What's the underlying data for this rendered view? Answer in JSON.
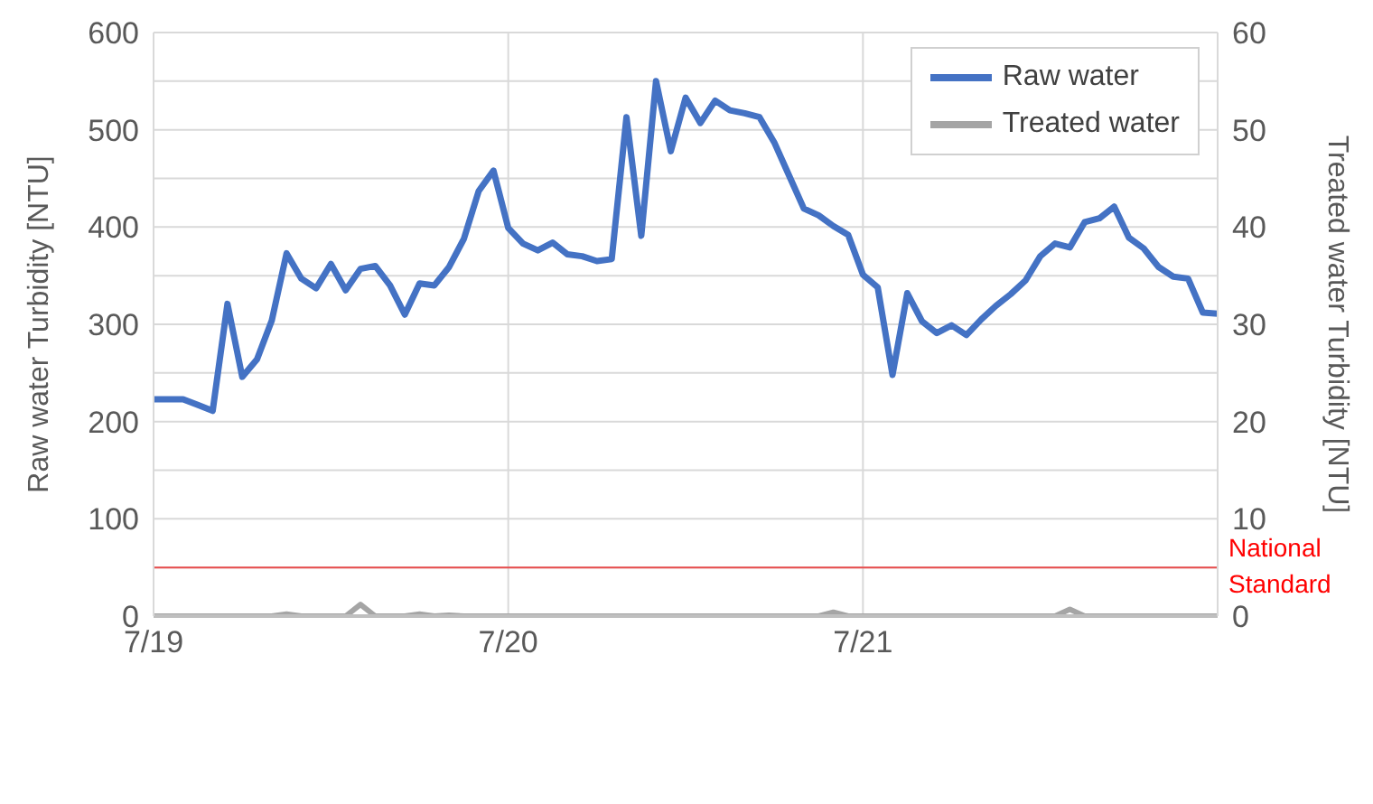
{
  "chart_data": {
    "type": "line",
    "ylabel": "Raw water Turbidity [NTU]",
    "y2label": "Treated water Turbidity [NTU]",
    "categories": [
      "7/19",
      null,
      null,
      null,
      null,
      null,
      null,
      null,
      null,
      null,
      null,
      null,
      null,
      null,
      null,
      null,
      null,
      null,
      null,
      null,
      null,
      null,
      null,
      null,
      "7/20",
      null,
      null,
      null,
      null,
      null,
      null,
      null,
      null,
      null,
      null,
      null,
      null,
      null,
      null,
      null,
      null,
      null,
      null,
      null,
      null,
      null,
      null,
      null,
      "7/21",
      null,
      null,
      null,
      null,
      null,
      null,
      null,
      null,
      null,
      null,
      null,
      null,
      null,
      null,
      null,
      null,
      null,
      null,
      null,
      null,
      null,
      null,
      null,
      null
    ],
    "series": [
      {
        "name": "Raw water",
        "color": "#4472c4",
        "values": [
          223,
          223,
          223,
          217,
          211,
          321,
          246,
          264,
          304,
          373,
          347,
          337,
          362,
          335,
          357,
          360,
          340,
          310,
          342,
          340,
          359,
          388,
          437,
          458,
          399,
          383,
          376,
          384,
          372,
          370,
          365,
          367,
          513,
          391,
          550,
          478,
          533,
          507,
          530,
          520,
          517,
          513,
          487,
          453,
          419,
          412,
          401,
          392,
          351,
          338,
          248,
          332,
          303,
          291,
          299,
          289,
          305,
          319,
          331,
          345,
          370,
          383,
          379,
          405,
          409,
          421,
          389,
          378,
          359,
          349,
          347,
          312,
          311
        ]
      },
      {
        "name": "Treated water",
        "color": "#a5a5a5",
        "axis": "y2",
        "values": [
          0,
          0,
          0,
          0,
          0,
          0,
          0,
          0,
          0,
          0.2,
          0,
          0,
          0,
          0,
          1.2,
          0,
          0,
          0,
          0.2,
          0,
          0.1,
          0,
          0,
          0,
          0,
          0,
          0,
          0,
          0,
          0,
          0,
          0,
          0,
          0,
          0,
          0,
          0,
          0,
          0,
          0,
          0,
          0,
          0,
          0,
          0,
          0,
          0.4,
          0,
          0,
          0,
          0,
          0,
          0,
          0,
          0,
          0,
          0,
          0,
          0,
          0,
          0,
          0,
          0.7,
          0,
          0,
          0,
          0,
          0,
          0,
          0,
          0,
          0,
          0
        ]
      }
    ],
    "ylim": [
      0,
      600
    ],
    "yticks": [
      0,
      {
        "value": 50,
        "label": null
      },
      100,
      {
        "value": 150,
        "label": null
      },
      200,
      {
        "value": 250,
        "label": null
      },
      300,
      {
        "value": 350,
        "label": null
      },
      400,
      {
        "value": 450,
        "label": null
      },
      500,
      {
        "value": 550,
        "label": null
      },
      600
    ],
    "y2lim": [
      0,
      60
    ],
    "y2ticks": [
      0,
      10,
      20,
      30,
      40,
      50,
      60
    ],
    "ref_lines": [
      {
        "axis": "y2",
        "value": 5,
        "label": "National Standard",
        "color": "#e84c4c"
      }
    ],
    "grid": true,
    "legend": "top right"
  }
}
